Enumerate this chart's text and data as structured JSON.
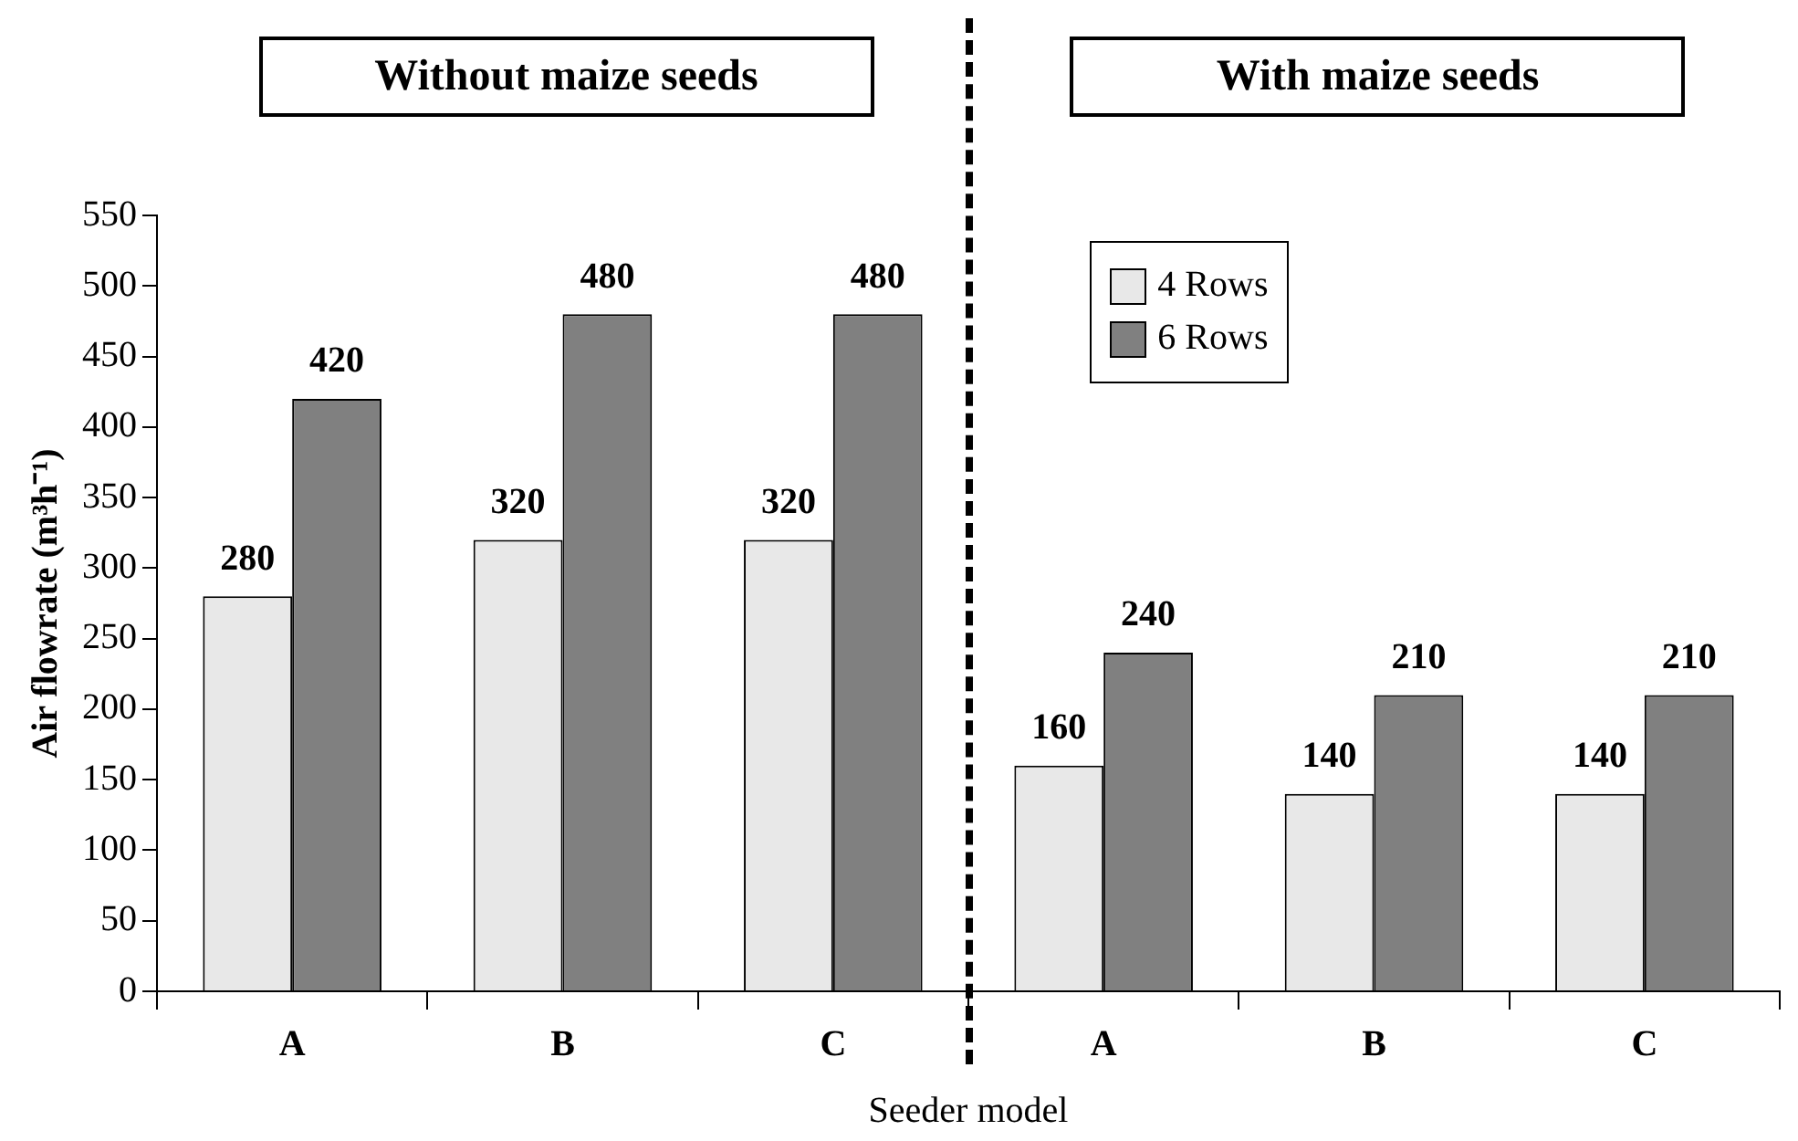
{
  "chart_data": {
    "type": "bar",
    "xlabel": "Seeder model",
    "ylabel": "Air flowrate (m³h⁻¹)",
    "categories": [
      "A",
      "B",
      "C",
      "A",
      "B",
      "C"
    ],
    "series": [
      {
        "name": "4 Rows",
        "color": "#e8e8e8",
        "values": [
          280,
          320,
          320,
          160,
          140,
          140
        ]
      },
      {
        "name": "6 Rows",
        "color": "#808080",
        "values": [
          420,
          480,
          480,
          240,
          210,
          210
        ]
      }
    ],
    "ylim": [
      0,
      550
    ],
    "yticks": [
      0,
      50,
      100,
      150,
      200,
      250,
      300,
      350,
      400,
      450,
      500,
      550
    ],
    "annotations": [
      "Without maize seeds",
      "With maize seeds"
    ],
    "data_labels": true,
    "grid": false,
    "legend": "top right"
  }
}
